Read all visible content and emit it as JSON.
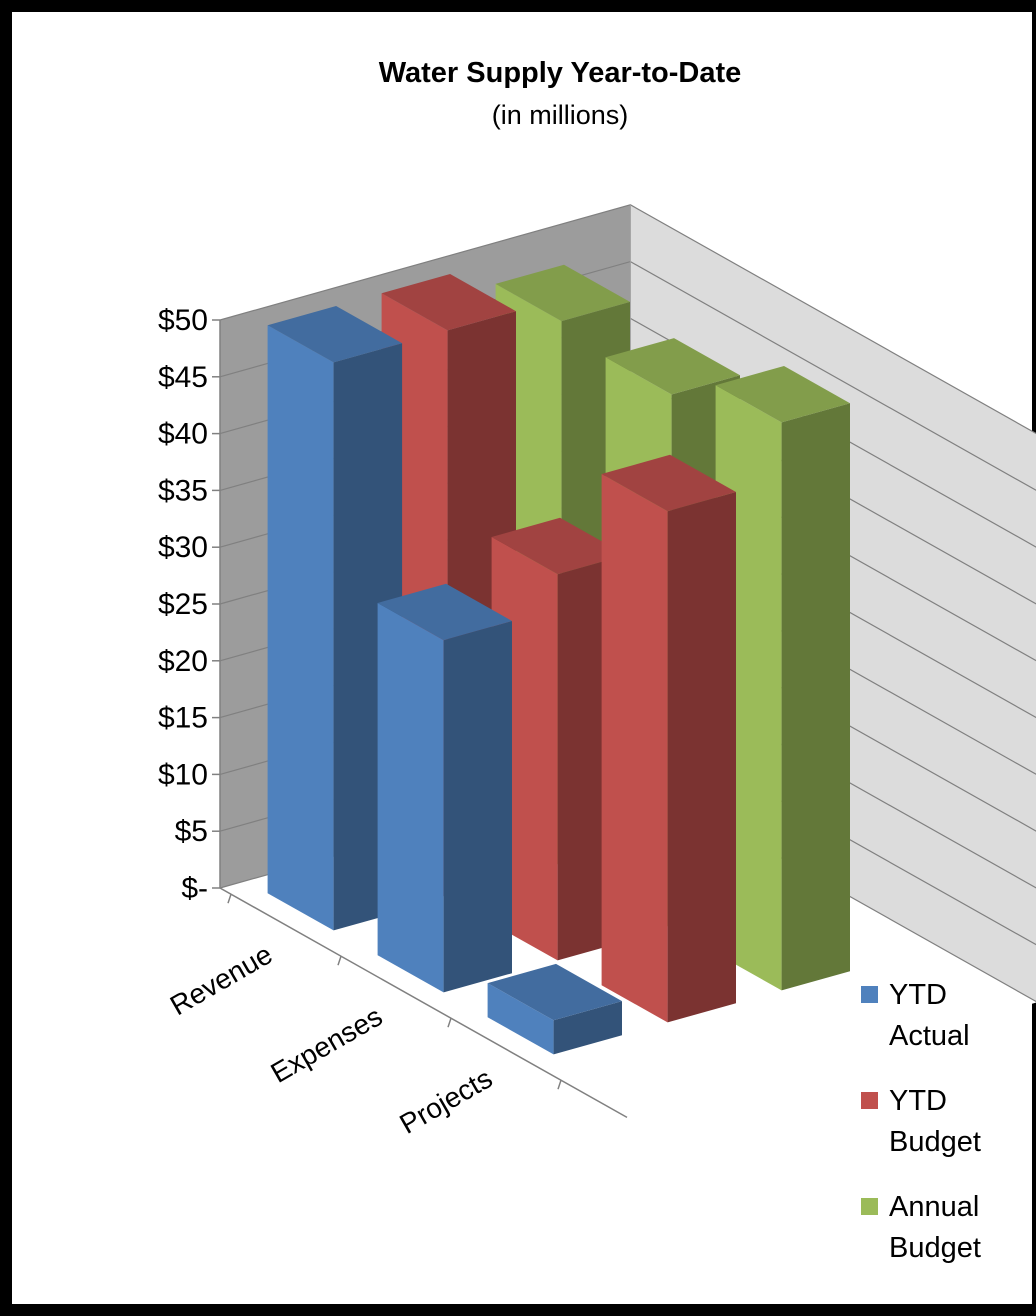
{
  "chart_data": {
    "type": "bar",
    "style": "3d-clustered-column",
    "title": "Water Supply  Year-to-Date",
    "subtitle": "(in millions)",
    "categories": [
      "Revenue",
      "Expenses",
      "Projects"
    ],
    "series": [
      {
        "name_lines": [
          "YTD",
          "Actual"
        ],
        "color": "#4f81bd",
        "values": [
          50,
          31,
          3
        ]
      },
      {
        "name_lines": [
          "YTD",
          "Budget"
        ],
        "color": "#c0504d",
        "values": [
          50,
          34,
          45
        ]
      },
      {
        "name_lines": [
          "Annual",
          "Budget"
        ],
        "color": "#9bbb59",
        "values": [
          48,
          47,
          50
        ]
      }
    ],
    "y_ticks": [
      "$-",
      "$5",
      "$10",
      "$15",
      "$20",
      "$25",
      "$30",
      "$35",
      "$40",
      "$45",
      "$50"
    ],
    "ylim": [
      0,
      50
    ],
    "grid": true,
    "legend_position": "right"
  }
}
